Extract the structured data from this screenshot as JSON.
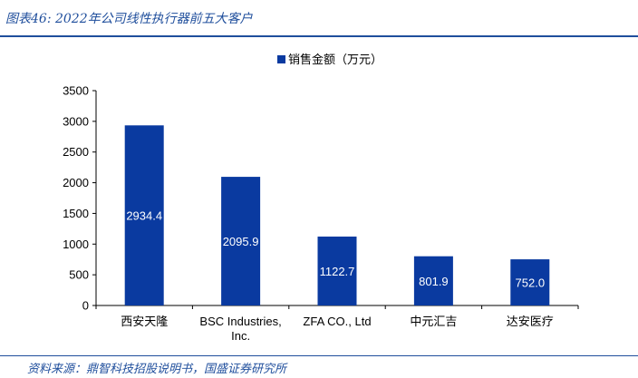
{
  "figure": {
    "title": "图表46: 2022年公司线性执行器前五大客户",
    "source": "资料来源：鼎智科技招股说明书，国盛证券研究所"
  },
  "colors": {
    "bar": "#0a3aa0",
    "rule": "#1f4e9c"
  },
  "chart_data": {
    "type": "bar",
    "categories": [
      "西安天隆",
      "BSC Industries, Inc.",
      "ZFA CO., Ltd",
      "中元汇吉",
      "达安医疗"
    ],
    "category_label_lines": [
      [
        "西安天隆"
      ],
      [
        "BSC Industries,",
        "Inc."
      ],
      [
        "ZFA CO., Ltd"
      ],
      [
        "中元汇吉"
      ],
      [
        "达安医疗"
      ]
    ],
    "series": [
      {
        "name": "销售金额（万元）",
        "values": [
          2934.4,
          2095.9,
          1122.7,
          801.9,
          752.0
        ]
      }
    ],
    "data_labels": [
      "2934.4",
      "2095.9",
      "1122.7",
      "801.9",
      "752.0"
    ],
    "yticks": [
      0,
      500,
      1000,
      1500,
      2000,
      2500,
      3000,
      3500
    ],
    "ylim": [
      0,
      3500
    ],
    "legend_position": "top-center",
    "grid": false
  }
}
